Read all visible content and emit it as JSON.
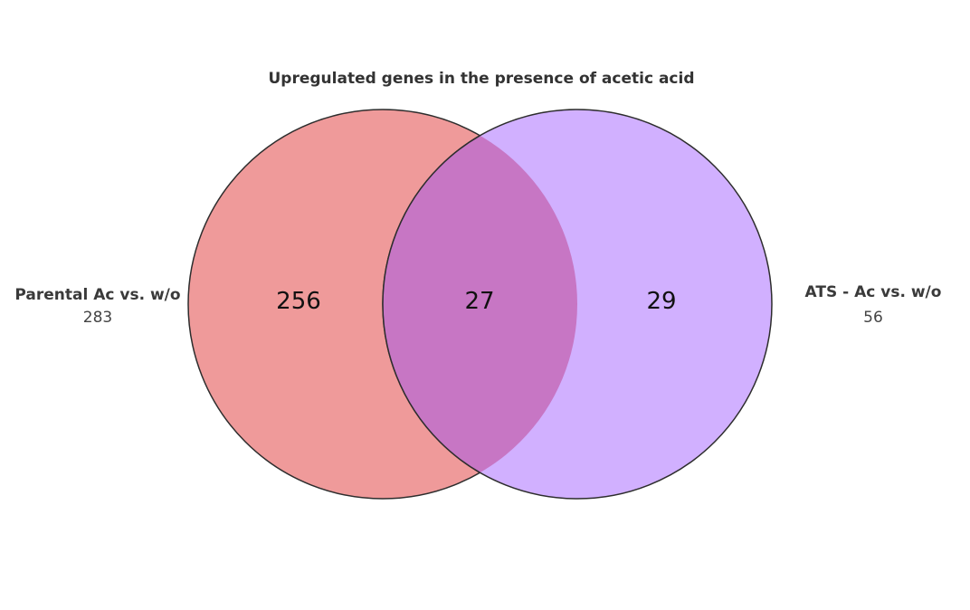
{
  "title": "Upregulated genes in the presence of acetic acid",
  "sets": [
    {
      "name": "Parental Ac vs. w/o",
      "total": "283",
      "color": "#ef9a9a"
    },
    {
      "name": "ATS - Ac vs. w/o",
      "total": "56",
      "color": "#d1b0ff"
    }
  ],
  "regions": {
    "left_only": "256",
    "intersection": "27",
    "right_only": "29"
  },
  "intersection_color": "#c776c4",
  "outline_color": "#2d2d2d"
}
